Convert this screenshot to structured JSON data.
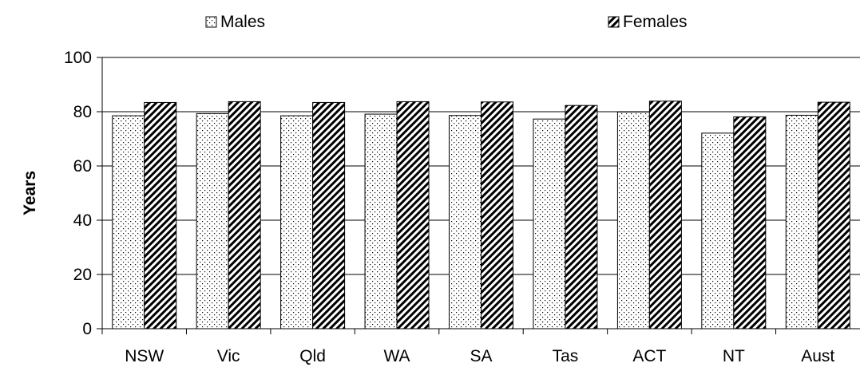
{
  "chart_data": {
    "type": "bar",
    "title": "",
    "xlabel": "",
    "ylabel": "Years",
    "ylim": [
      0,
      100
    ],
    "yticks": [
      0,
      20,
      40,
      60,
      80,
      100
    ],
    "grid": true,
    "legend_position": "top",
    "categories": [
      "NSW",
      "Vic",
      "Qld",
      "WA",
      "SA",
      "Tas",
      "ACT",
      "NT",
      "Aust"
    ],
    "series": [
      {
        "name": "Males",
        "pattern": "dots",
        "values": [
          78.5,
          79.3,
          78.5,
          79.1,
          78.6,
          77.3,
          79.9,
          72.1,
          78.7
        ]
      },
      {
        "name": "Females",
        "pattern": "diagonal-hatch",
        "values": [
          83.4,
          83.7,
          83.4,
          83.7,
          83.6,
          82.3,
          83.9,
          78.1,
          83.5
        ]
      }
    ]
  }
}
